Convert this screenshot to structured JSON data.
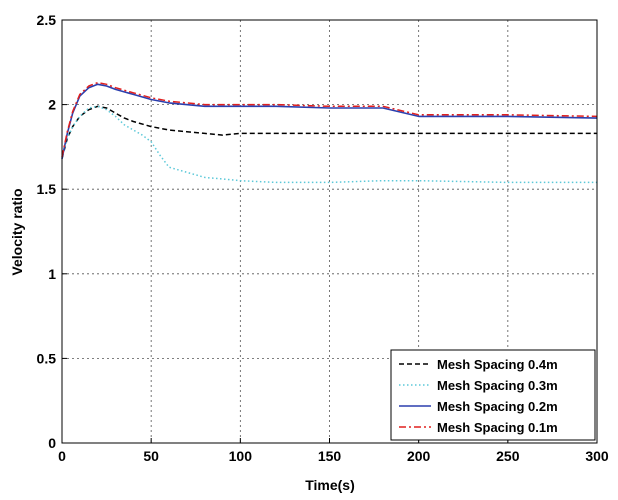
{
  "chart_data": {
    "type": "line",
    "title": "",
    "xlabel": "Time(s)",
    "ylabel": "Velocity ratio",
    "xlim": [
      0,
      300
    ],
    "ylim": [
      0,
      2.5
    ],
    "xticks": [
      0,
      50,
      100,
      150,
      200,
      250,
      300
    ],
    "yticks": [
      0,
      0.5,
      1,
      1.5,
      2,
      2.5
    ],
    "xtick_labels": [
      "0",
      "50",
      "100",
      "150",
      "200",
      "250",
      "300"
    ],
    "ytick_labels": [
      "0",
      "0.5",
      "1",
      "1.5",
      "2",
      "2.5"
    ],
    "grid": true,
    "legend_position": "bottom-right",
    "series": [
      {
        "name": "Mesh Spacing 0.4m",
        "color": "#000000",
        "dash": "dashed",
        "x": [
          0,
          3,
          6,
          10,
          15,
          20,
          25,
          30,
          35,
          40,
          50,
          60,
          70,
          80,
          90,
          100,
          120,
          150,
          200,
          250,
          300
        ],
        "y": [
          1.68,
          1.8,
          1.87,
          1.93,
          1.97,
          1.99,
          1.98,
          1.95,
          1.92,
          1.9,
          1.87,
          1.85,
          1.84,
          1.83,
          1.82,
          1.83,
          1.83,
          1.83,
          1.83,
          1.83,
          1.83
        ]
      },
      {
        "name": "Mesh Spacing 0.3m",
        "color": "#5bc8d8",
        "dash": "dotted",
        "x": [
          0,
          3,
          6,
          10,
          15,
          20,
          25,
          30,
          35,
          40,
          45,
          50,
          55,
          60,
          70,
          80,
          90,
          100,
          120,
          150,
          180,
          200,
          250,
          300
        ],
        "y": [
          1.68,
          1.8,
          1.87,
          1.93,
          1.98,
          1.99,
          1.97,
          1.93,
          1.88,
          1.85,
          1.82,
          1.78,
          1.7,
          1.63,
          1.6,
          1.57,
          1.56,
          1.55,
          1.54,
          1.54,
          1.55,
          1.55,
          1.54,
          1.54
        ]
      },
      {
        "name": "Mesh Spacing 0.2m",
        "color": "#2b3fae",
        "dash": "solid",
        "x": [
          0,
          3,
          6,
          10,
          15,
          20,
          25,
          30,
          40,
          50,
          60,
          80,
          100,
          120,
          150,
          180,
          200,
          250,
          300
        ],
        "y": [
          1.68,
          1.83,
          1.95,
          2.05,
          2.1,
          2.12,
          2.11,
          2.09,
          2.06,
          2.03,
          2.01,
          1.99,
          1.99,
          1.99,
          1.98,
          1.98,
          1.93,
          1.93,
          1.92
        ]
      },
      {
        "name": "Mesh Spacing 0.1m",
        "color": "#e0201f",
        "dash": "dashdot",
        "x": [
          0,
          3,
          6,
          10,
          15,
          20,
          25,
          30,
          40,
          50,
          60,
          80,
          100,
          120,
          150,
          180,
          200,
          250,
          300
        ],
        "y": [
          1.69,
          1.84,
          1.96,
          2.06,
          2.11,
          2.13,
          2.12,
          2.1,
          2.07,
          2.04,
          2.02,
          2.0,
          2.0,
          2.0,
          1.99,
          1.99,
          1.94,
          1.94,
          1.93
        ]
      }
    ]
  }
}
